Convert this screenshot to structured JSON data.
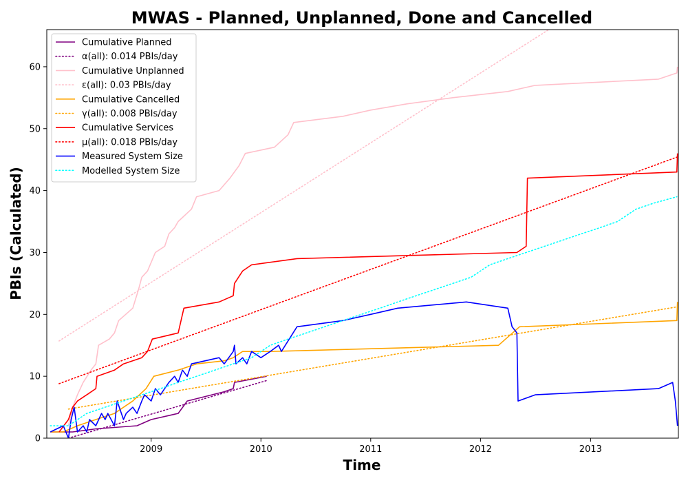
{
  "chart_data": {
    "type": "line",
    "title": "MWAS - Planned, Unplanned, Done  and Cancelled",
    "xlabel": "Time",
    "ylabel": "PBIs (Calculated)",
    "xlim": [
      "2008-01-20",
      "2013-10-20"
    ],
    "ylim": [
      0,
      66
    ],
    "x_ticks": [
      {
        "date": "2009-01-01",
        "label": "2009"
      },
      {
        "date": "2010-01-01",
        "label": "2010"
      },
      {
        "date": "2011-01-01",
        "label": "2011"
      },
      {
        "date": "2012-01-01",
        "label": "2012"
      },
      {
        "date": "2013-01-01",
        "label": "2013"
      }
    ],
    "y_ticks": [
      0,
      10,
      20,
      30,
      40,
      50,
      60
    ],
    "grid": false,
    "legend_position": "upper-left",
    "series": [
      {
        "name": "Cumulative Planned",
        "color": "#800080",
        "style": "solid",
        "points": [
          [
            "2008-02-01",
            1
          ],
          [
            "2008-04-15",
            1
          ],
          [
            "2008-07-01",
            1.5
          ],
          [
            "2008-11-15",
            2
          ],
          [
            "2009-01-01",
            3
          ],
          [
            "2009-04-01",
            4
          ],
          [
            "2009-05-01",
            6
          ],
          [
            "2009-09-01",
            7.5
          ],
          [
            "2009-10-01",
            8
          ],
          [
            "2009-10-05",
            9
          ],
          [
            "2010-01-20",
            10
          ]
        ]
      },
      {
        "name": "α(all): 0.014 PBIs/day",
        "color": "#800080",
        "style": "dotted",
        "points": [
          [
            "2008-04-01",
            0
          ],
          [
            "2010-01-20",
            9.3
          ]
        ]
      },
      {
        "name": "Cumulative Unplanned",
        "color": "#FFC0CB",
        "style": "solid",
        "points": [
          [
            "2008-04-01",
            2
          ],
          [
            "2008-04-15",
            5
          ],
          [
            "2008-05-01",
            7
          ],
          [
            "2008-05-20",
            9
          ],
          [
            "2008-06-15",
            11
          ],
          [
            "2008-07-01",
            12
          ],
          [
            "2008-07-10",
            15
          ],
          [
            "2008-08-15",
            16
          ],
          [
            "2008-09-01",
            17
          ],
          [
            "2008-09-15",
            19
          ],
          [
            "2008-11-01",
            21
          ],
          [
            "2008-11-20",
            24
          ],
          [
            "2008-12-01",
            26
          ],
          [
            "2008-12-20",
            27
          ],
          [
            "2009-01-15",
            30
          ],
          [
            "2009-02-15",
            31
          ],
          [
            "2009-03-01",
            33
          ],
          [
            "2009-03-20",
            34
          ],
          [
            "2009-04-01",
            35
          ],
          [
            "2009-05-15",
            37
          ],
          [
            "2009-06-01",
            39
          ],
          [
            "2009-08-15",
            40
          ],
          [
            "2009-09-20",
            42
          ],
          [
            "2009-10-20",
            44
          ],
          [
            "2009-11-10",
            46
          ],
          [
            "2010-02-15",
            47
          ],
          [
            "2010-04-01",
            49
          ],
          [
            "2010-04-20",
            51
          ],
          [
            "2010-10-01",
            52
          ],
          [
            "2011-01-01",
            53
          ],
          [
            "2011-05-01",
            54
          ],
          [
            "2011-10-01",
            55
          ],
          [
            "2012-04-01",
            56
          ],
          [
            "2012-07-01",
            57
          ],
          [
            "2013-08-15",
            58
          ],
          [
            "2013-10-15",
            59
          ],
          [
            "2013-10-17",
            60
          ]
        ]
      },
      {
        "name": "ε(all): 0.03 PBIs/day",
        "color": "#FFC0CB",
        "style": "dotted",
        "points": [
          [
            "2008-03-01",
            15.7
          ],
          [
            "2012-08-15",
            66
          ]
        ]
      },
      {
        "name": "Cumulative Cancelled",
        "color": "#FFA500",
        "style": "solid",
        "points": [
          [
            "2008-02-01",
            1
          ],
          [
            "2008-03-15",
            1
          ],
          [
            "2008-05-01",
            2
          ],
          [
            "2008-07-01",
            3
          ],
          [
            "2008-09-01",
            4
          ],
          [
            "2008-11-01",
            6
          ],
          [
            "2008-12-15",
            8
          ],
          [
            "2009-01-10",
            10
          ],
          [
            "2009-04-01",
            11
          ],
          [
            "2009-06-01",
            12
          ],
          [
            "2009-09-01",
            12.5
          ],
          [
            "2009-10-01",
            13
          ],
          [
            "2009-11-01",
            14
          ],
          [
            "2010-02-01",
            14
          ],
          [
            "2012-03-01",
            15
          ],
          [
            "2012-05-10",
            18
          ],
          [
            "2013-10-15",
            19
          ],
          [
            "2013-10-17",
            22
          ]
        ]
      },
      {
        "name": "γ(all): 0.008 PBIs/day",
        "color": "#FFA500",
        "style": "dotted",
        "points": [
          [
            "2008-04-01",
            4.7
          ],
          [
            "2013-10-15",
            21.2
          ]
        ]
      },
      {
        "name": "Cumulative Services",
        "color": "#FF0000",
        "style": "solid",
        "points": [
          [
            "2008-03-01",
            1
          ],
          [
            "2008-04-01",
            3
          ],
          [
            "2008-04-15",
            5
          ],
          [
            "2008-05-01",
            6
          ],
          [
            "2008-06-01",
            7
          ],
          [
            "2008-07-01",
            8
          ],
          [
            "2008-07-05",
            10
          ],
          [
            "2008-09-01",
            11
          ],
          [
            "2008-10-01",
            12
          ],
          [
            "2008-12-01",
            13
          ],
          [
            "2008-12-20",
            14
          ],
          [
            "2009-01-05",
            16
          ],
          [
            "2009-04-01",
            17
          ],
          [
            "2009-04-15",
            20
          ],
          [
            "2009-04-20",
            21
          ],
          [
            "2009-08-15",
            22
          ],
          [
            "2009-10-01",
            23
          ],
          [
            "2009-10-05",
            25
          ],
          [
            "2009-11-01",
            27
          ],
          [
            "2009-12-01",
            28
          ],
          [
            "2010-05-01",
            29
          ],
          [
            "2012-05-01",
            30
          ],
          [
            "2012-06-01",
            31
          ],
          [
            "2012-06-05",
            42
          ],
          [
            "2013-10-15",
            43
          ],
          [
            "2013-10-17",
            46
          ]
        ]
      },
      {
        "name": "μ(all): 0.018 PBIs/day",
        "color": "#FF0000",
        "style": "dotted",
        "points": [
          [
            "2008-03-01",
            8.8
          ],
          [
            "2013-10-15",
            45.4
          ]
        ]
      },
      {
        "name": "Measured System Size",
        "color": "#0000FF",
        "style": "solid",
        "points": [
          [
            "2008-02-01",
            1
          ],
          [
            "2008-03-15",
            2
          ],
          [
            "2008-04-01",
            0
          ],
          [
            "2008-04-10",
            3
          ],
          [
            "2008-04-20",
            5
          ],
          [
            "2008-05-01",
            1
          ],
          [
            "2008-05-20",
            2
          ],
          [
            "2008-06-01",
            1
          ],
          [
            "2008-06-10",
            3
          ],
          [
            "2008-07-01",
            2
          ],
          [
            "2008-07-20",
            4
          ],
          [
            "2008-08-01",
            3
          ],
          [
            "2008-08-10",
            4
          ],
          [
            "2008-09-01",
            2
          ],
          [
            "2008-09-10",
            6
          ],
          [
            "2008-10-01",
            3
          ],
          [
            "2008-10-10",
            4
          ],
          [
            "2008-11-01",
            5
          ],
          [
            "2008-11-15",
            4
          ],
          [
            "2008-12-01",
            6
          ],
          [
            "2008-12-10",
            7
          ],
          [
            "2009-01-01",
            6
          ],
          [
            "2009-01-15",
            8
          ],
          [
            "2009-02-01",
            7
          ],
          [
            "2009-03-01",
            9
          ],
          [
            "2009-03-20",
            10
          ],
          [
            "2009-04-01",
            9
          ],
          [
            "2009-04-15",
            11
          ],
          [
            "2009-05-01",
            10
          ],
          [
            "2009-05-15",
            12
          ],
          [
            "2009-08-15",
            13
          ],
          [
            "2009-09-01",
            12
          ],
          [
            "2009-10-01",
            14
          ],
          [
            "2009-10-05",
            15
          ],
          [
            "2009-10-10",
            12
          ],
          [
            "2009-11-01",
            13
          ],
          [
            "2009-11-15",
            12
          ],
          [
            "2009-12-01",
            14
          ],
          [
            "2010-01-01",
            13
          ],
          [
            "2010-02-01",
            14
          ],
          [
            "2010-03-01",
            15
          ],
          [
            "2010-03-10",
            14
          ],
          [
            "2010-05-01",
            18
          ],
          [
            "2010-10-01",
            19
          ],
          [
            "2011-01-01",
            20
          ],
          [
            "2011-04-01",
            21
          ],
          [
            "2011-11-15",
            22
          ],
          [
            "2012-04-01",
            21
          ],
          [
            "2012-04-15",
            18
          ],
          [
            "2012-05-01",
            17
          ],
          [
            "2012-05-05",
            6
          ],
          [
            "2012-07-01",
            7
          ],
          [
            "2013-08-15",
            8
          ],
          [
            "2013-10-01",
            9
          ],
          [
            "2013-10-10",
            6
          ],
          [
            "2013-10-17",
            2
          ]
        ]
      },
      {
        "name": "Modelled System Size",
        "color": "#00FFFF",
        "style": "dotted",
        "points": [
          [
            "2008-02-01",
            2
          ],
          [
            "2008-04-01",
            2
          ],
          [
            "2008-06-01",
            4
          ],
          [
            "2008-08-01",
            5
          ],
          [
            "2008-10-01",
            6
          ],
          [
            "2008-12-01",
            7
          ],
          [
            "2009-02-01",
            8
          ],
          [
            "2009-04-01",
            9
          ],
          [
            "2009-06-01",
            10
          ],
          [
            "2009-08-01",
            11
          ],
          [
            "2009-10-01",
            12
          ],
          [
            "2009-12-01",
            13
          ],
          [
            "2010-02-01",
            15
          ],
          [
            "2010-04-01",
            16
          ],
          [
            "2010-06-01",
            17
          ],
          [
            "2010-08-01",
            18
          ],
          [
            "2010-10-01",
            19
          ],
          [
            "2010-12-01",
            20
          ],
          [
            "2011-02-01",
            21
          ],
          [
            "2011-04-01",
            22
          ],
          [
            "2011-06-01",
            23
          ],
          [
            "2011-08-01",
            24
          ],
          [
            "2011-10-01",
            25
          ],
          [
            "2011-12-01",
            26
          ],
          [
            "2012-02-01",
            28
          ],
          [
            "2012-04-01",
            29
          ],
          [
            "2012-06-01",
            30
          ],
          [
            "2012-08-01",
            31
          ],
          [
            "2012-10-01",
            32
          ],
          [
            "2012-12-01",
            33
          ],
          [
            "2013-02-01",
            34
          ],
          [
            "2013-04-01",
            35
          ],
          [
            "2013-06-01",
            37
          ],
          [
            "2013-08-01",
            38
          ],
          [
            "2013-10-15",
            39
          ]
        ]
      }
    ]
  }
}
